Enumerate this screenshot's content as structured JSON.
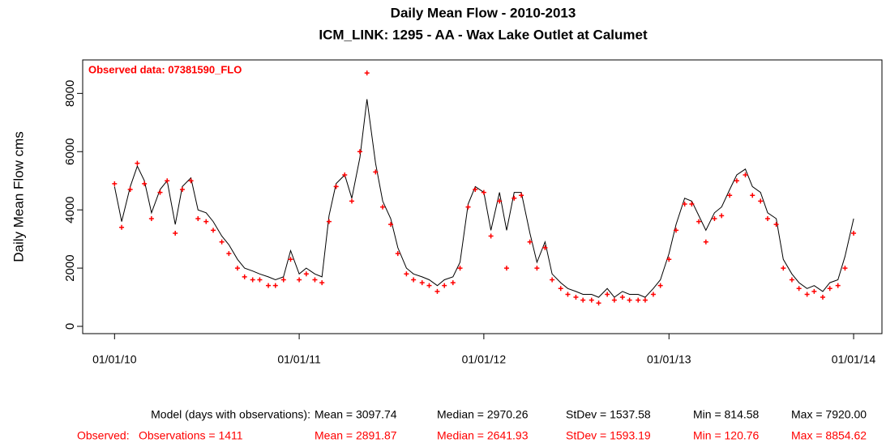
{
  "chart_data": {
    "type": "line",
    "title": "Daily Mean Flow - 2010-2013",
    "subtitle": "ICM_LINK: 1295 - AA - Wax Lake Outlet at Calumet",
    "y_label": "Daily Mean Flow cms",
    "annotation": "Observed data: 07381590_FLO",
    "x": [
      "01/01/10",
      "01/15/10",
      "02/01/10",
      "02/15/10",
      "03/01/10",
      "03/15/10",
      "04/01/10",
      "04/15/10",
      "05/01/10",
      "05/15/10",
      "06/01/10",
      "06/15/10",
      "07/01/10",
      "07/15/10",
      "08/01/10",
      "08/15/10",
      "09/01/10",
      "09/15/10",
      "10/01/10",
      "10/15/10",
      "11/01/10",
      "11/15/10",
      "12/01/10",
      "12/15/10",
      "01/01/11",
      "01/15/11",
      "02/01/11",
      "02/15/11",
      "03/01/11",
      "03/15/11",
      "04/01/11",
      "04/15/11",
      "05/01/11",
      "05/15/11",
      "06/01/11",
      "06/15/11",
      "07/01/11",
      "07/15/11",
      "08/01/11",
      "08/15/11",
      "09/01/11",
      "09/15/11",
      "10/01/11",
      "10/15/11",
      "11/01/11",
      "11/15/11",
      "12/01/11",
      "12/15/11",
      "01/01/12",
      "01/15/12",
      "02/01/12",
      "02/15/12",
      "03/01/12",
      "03/15/12",
      "04/01/12",
      "04/15/12",
      "05/01/12",
      "05/15/12",
      "06/01/12",
      "06/15/12",
      "07/01/12",
      "07/15/12",
      "08/01/12",
      "08/15/12",
      "09/01/12",
      "09/15/12",
      "10/01/12",
      "10/15/12",
      "11/01/12",
      "11/15/12",
      "12/01/12",
      "12/15/12",
      "01/01/13",
      "01/15/13",
      "02/01/13",
      "02/15/13",
      "03/01/13",
      "03/15/13",
      "04/01/13",
      "04/15/13",
      "05/01/13",
      "05/15/13",
      "06/01/13",
      "06/15/13",
      "07/01/13",
      "07/15/13",
      "08/01/13",
      "08/15/13",
      "09/01/13",
      "09/15/13",
      "10/01/13",
      "10/15/13",
      "11/01/13",
      "11/15/13",
      "12/01/13",
      "12/15/13",
      "01/01/14"
    ],
    "series": [
      {
        "name": "Model",
        "color": "#000000",
        "style": "line",
        "values": [
          4800,
          3600,
          4800,
          5500,
          5000,
          3900,
          4700,
          5000,
          3500,
          4800,
          5100,
          4000,
          3900,
          3600,
          3100,
          2800,
          2300,
          2000,
          1900,
          1800,
          1700,
          1600,
          1700,
          2600,
          1800,
          2000,
          1800,
          1700,
          3800,
          4900,
          5200,
          4400,
          5800,
          7800,
          5600,
          4300,
          3700,
          2700,
          2000,
          1800,
          1700,
          1600,
          1400,
          1600,
          1700,
          2200,
          4200,
          4800,
          4600,
          3300,
          4600,
          3300,
          4600,
          4600,
          3200,
          2200,
          2900,
          1800,
          1500,
          1300,
          1200,
          1100,
          1100,
          1000,
          1300,
          1000,
          1200,
          1100,
          1100,
          1000,
          1300,
          1600,
          2500,
          3500,
          4400,
          4300,
          3800,
          3300,
          3900,
          4100,
          4700,
          5200,
          5400,
          4800,
          4600,
          3900,
          3700,
          2300,
          1800,
          1500,
          1300,
          1400,
          1200,
          1500,
          1600,
          2400,
          3700
        ]
      },
      {
        "name": "Observed",
        "color": "#ff0000",
        "style": "points",
        "values": [
          4900,
          3400,
          4700,
          5600,
          4900,
          3700,
          4600,
          5000,
          3200,
          4700,
          5000,
          3700,
          3600,
          3300,
          2900,
          2500,
          2000,
          1700,
          1600,
          1600,
          1400,
          1400,
          1600,
          2300,
          1600,
          1800,
          1600,
          1500,
          3600,
          4800,
          5200,
          4300,
          6000,
          8700,
          5300,
          4100,
          3500,
          2500,
          1800,
          1600,
          1500,
          1400,
          1200,
          1400,
          1500,
          2000,
          4100,
          4700,
          4600,
          3100,
          4300,
          2000,
          4400,
          4500,
          2900,
          2000,
          2700,
          1600,
          1300,
          1100,
          1000,
          900,
          900,
          800,
          1100,
          900,
          1000,
          900,
          900,
          900,
          1100,
          1400,
          2300,
          3300,
          4200,
          4200,
          3600,
          2900,
          3700,
          3800,
          4500,
          5000,
          5200,
          4500,
          4300,
          3700,
          3500,
          2000,
          1600,
          1300,
          1100,
          1200,
          1000,
          1300,
          1400,
          2000,
          3200
        ]
      }
    ],
    "xlim": [
      "10/30/09",
      "02/26/14"
    ],
    "xticks": [
      "01/01/10",
      "01/01/11",
      "01/01/12",
      "01/01/13",
      "01/01/14"
    ],
    "ylim": [
      -250,
      9150
    ],
    "yticks": [
      0,
      2000,
      4000,
      6000,
      8000
    ],
    "stats": [
      {
        "color": "#000000",
        "label": "Model (days with observations):",
        "items": [
          "Mean = 3097.74",
          "Median = 2970.26",
          "StDev = 1537.58",
          "Min = 814.58",
          "Max = 7920.00"
        ]
      },
      {
        "color": "#ff0000",
        "label": "Observed:",
        "count": "Observations = 1411",
        "items": [
          "Mean = 2891.87",
          "Median = 2641.93",
          "StDev = 1593.19",
          "Min = 120.76",
          "Max = 8854.62"
        ]
      }
    ]
  }
}
